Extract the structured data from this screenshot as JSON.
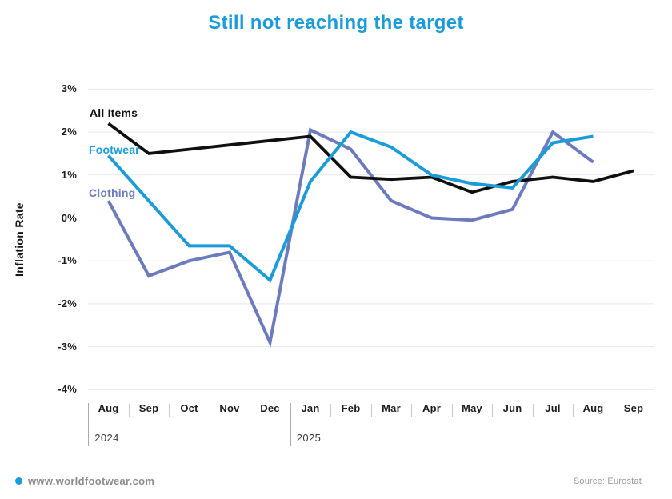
{
  "colors": {
    "accent_blue": "#1b9cd8",
    "clothing_blue": "#6b7bbd",
    "all_items_black": "#0f0f0f",
    "grid": "#e7e7e7",
    "zero_line": "#8f8f8f",
    "axis_text": "#1c1c1c",
    "footer_text": "#8d8d8d"
  },
  "chart_data": {
    "type": "line",
    "title": "Still not reaching the target",
    "ylabel": "Inflation Rate",
    "ylim": [
      -4,
      3
    ],
    "yticks": [
      3,
      2,
      1,
      0,
      -1,
      -2,
      -3,
      -4
    ],
    "ytick_suffix": "%",
    "grid": "horizontal",
    "legend_position": "inline-left-of-lines",
    "x_axis": {
      "categories": [
        "Aug",
        "Sep",
        "Oct",
        "Nov",
        "Dec",
        "Jan",
        "Feb",
        "Mar",
        "Apr",
        "May",
        "Jun",
        "Jul",
        "Aug",
        "Sep"
      ],
      "year_groups": [
        {
          "label": "2024",
          "start_index": 0,
          "months": 5
        },
        {
          "label": "2025",
          "start_index": 5,
          "months": 9
        }
      ]
    },
    "series": [
      {
        "name": "All Items",
        "color": "#0f0f0f",
        "values": [
          2.2,
          1.5,
          1.6,
          1.7,
          1.8,
          1.9,
          0.95,
          0.9,
          0.95,
          0.6,
          0.85,
          0.95,
          0.85,
          1.1
        ]
      },
      {
        "name": "Footwear",
        "color": "#1b9cd8",
        "values": [
          1.45,
          0.4,
          -0.65,
          -0.65,
          -1.45,
          0.85,
          2.0,
          1.65,
          1.0,
          0.8,
          0.7,
          1.75,
          1.9,
          null
        ]
      },
      {
        "name": "Clothing",
        "color": "#6b7bbd",
        "values": [
          0.4,
          -1.35,
          -1.0,
          -0.8,
          -2.9,
          2.05,
          1.6,
          0.4,
          0.0,
          -0.05,
          0.2,
          2.0,
          1.3,
          null
        ]
      }
    ]
  },
  "footer": {
    "site": "www.worldfootwear.com",
    "source": "Source: Eurostat"
  }
}
